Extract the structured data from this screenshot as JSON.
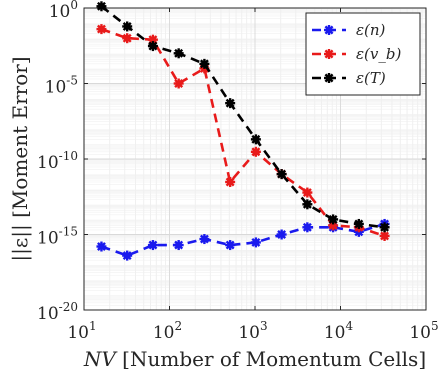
{
  "chart_data": {
    "type": "line",
    "title": "",
    "xlabel": "NV [Number of Momentum Cells]",
    "xlabel_italic_part": "NV",
    "xlabel_rest": " [Number of Momentum Cells]",
    "ylabel": "||ε|| [Moment Error]",
    "xscale": "log",
    "yscale": "log",
    "xlim": [
      10,
      100000
    ],
    "ylim": [
      1e-20,
      1
    ],
    "grid": true,
    "legend_position": "top-right",
    "x_ticks": [
      {
        "value": 10,
        "base": "10",
        "exp": "1"
      },
      {
        "value": 100,
        "base": "10",
        "exp": "2"
      },
      {
        "value": 1000,
        "base": "10",
        "exp": "3"
      },
      {
        "value": 10000,
        "base": "10",
        "exp": "4"
      },
      {
        "value": 100000,
        "base": "10",
        "exp": "5"
      }
    ],
    "y_ticks": [
      {
        "value": 1,
        "base": "10",
        "exp": "0"
      },
      {
        "value": 1e-05,
        "base": "10",
        "exp": "-5"
      },
      {
        "value": 1e-10,
        "base": "10",
        "exp": "-10"
      },
      {
        "value": 1e-15,
        "base": "10",
        "exp": "-15"
      },
      {
        "value": 1e-20,
        "base": "10",
        "exp": "-20"
      }
    ],
    "x": [
      16,
      32,
      64,
      128,
      256,
      512,
      1024,
      2048,
      4096,
      8192,
      16384,
      32768
    ],
    "series": [
      {
        "name": "ε(n)",
        "color": "#1a1aee",
        "values": [
          1.6e-16,
          4e-17,
          2e-16,
          2e-16,
          5e-16,
          2e-16,
          3e-16,
          1e-15,
          3e-15,
          3e-15,
          1.5e-15,
          5e-15
        ]
      },
      {
        "name": "ε(v_b)",
        "color": "#e81a1a",
        "values": [
          0.04,
          0.01,
          0.008,
          1e-05,
          0.0001,
          3e-12,
          3e-10,
          1e-11,
          6e-13,
          4e-15,
          3e-15,
          8e-16
        ]
      },
      {
        "name": "ε(T)",
        "color": "#000000",
        "values": [
          1.3,
          0.06,
          0.003,
          0.001,
          0.0002,
          5e-07,
          2e-09,
          1e-11,
          1e-13,
          1e-14,
          5e-15,
          3e-15
        ]
      }
    ],
    "legend": [
      {
        "label": "ε(n)",
        "series": 0
      },
      {
        "label": "ε(v_b)",
        "series": 1
      },
      {
        "label": "ε(T)",
        "series": 2
      }
    ]
  }
}
